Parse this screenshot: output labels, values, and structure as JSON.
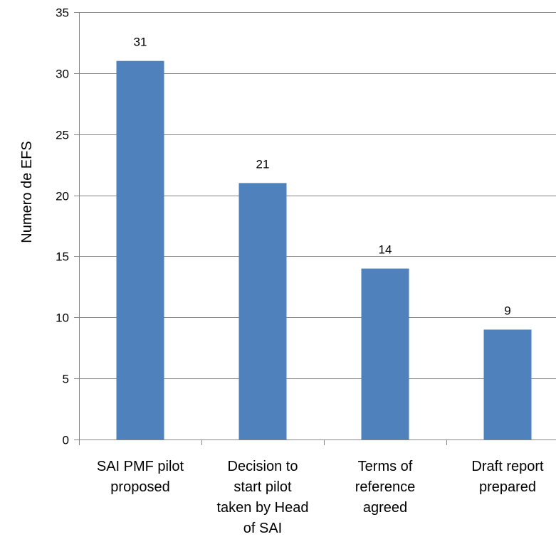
{
  "chart_data": {
    "type": "bar",
    "title": "",
    "xlabel": "",
    "ylabel": "Numero de EFS",
    "ylim": [
      0,
      35
    ],
    "yticks": [
      0,
      5,
      10,
      15,
      20,
      25,
      30,
      35
    ],
    "grid": true,
    "legend": "none",
    "bar_color": "#4f81bd",
    "grid_color": "#868686",
    "categories": [
      [
        "SAI PMF pilot",
        "proposed"
      ],
      [
        "Decision to",
        "start pilot",
        "taken by Head",
        "of SAI"
      ],
      [
        "Terms of",
        "reference",
        "agreed"
      ],
      [
        "Draft report",
        "prepared"
      ]
    ],
    "values": [
      31,
      21,
      14,
      9
    ]
  }
}
